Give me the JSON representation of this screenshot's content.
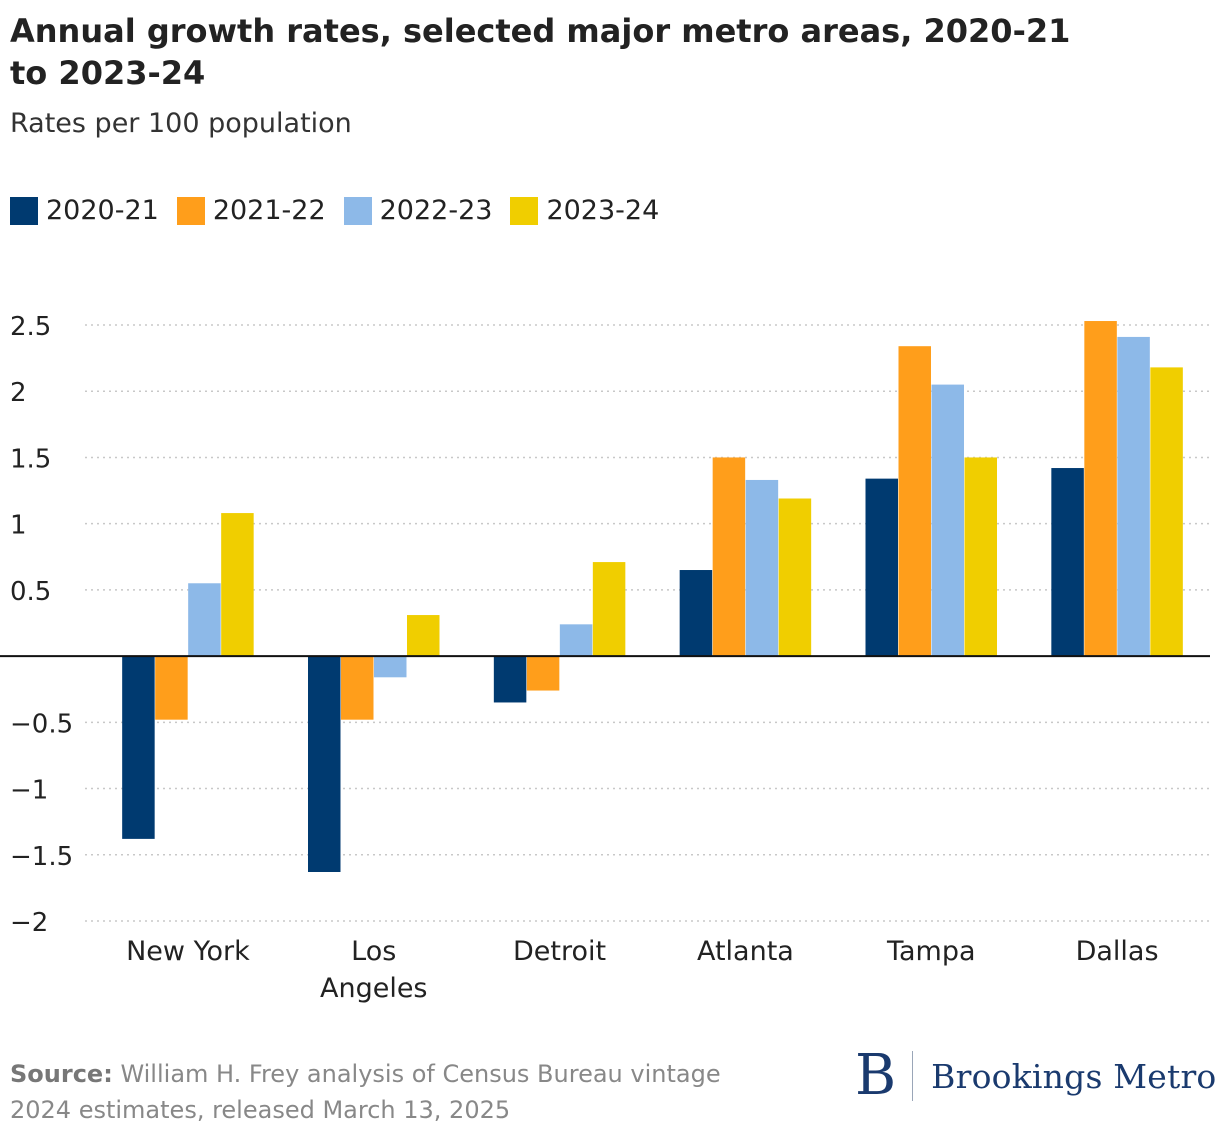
{
  "header": {
    "title": "Annual growth rates, selected major metro areas, 2020-21 to 2023-24",
    "subtitle": "Rates per 100 population"
  },
  "footer": {
    "source_label": "Source:",
    "source_text": "William H. Frey analysis of Census Bureau vintage 2024 estimates, released March 13, 2025",
    "logo_mark": "B",
    "logo_text": "Brookings Metro"
  },
  "chart_data": {
    "type": "bar",
    "title": "Annual growth rates, selected major metro areas, 2020-21 to 2023-24",
    "subtitle": "Rates per 100 population",
    "xlabel": "",
    "ylabel": "",
    "ylim": [
      -2,
      2.5
    ],
    "yticks": [
      "2.5",
      "2",
      "1.5",
      "1",
      "0.5",
      "−0.5",
      "−1",
      "−1.5",
      "−2"
    ],
    "ytick_values": [
      2.5,
      2,
      1.5,
      1,
      0.5,
      -0.5,
      -1,
      -1.5,
      -2
    ],
    "grid": "horizontal dotted",
    "legend_position": "top-left",
    "categories": [
      "New York",
      "Los Angeles",
      "Detroit",
      "Atlanta",
      "Tampa",
      "Dallas"
    ],
    "category_lines": [
      [
        "New York"
      ],
      [
        "Los",
        "Angeles"
      ],
      [
        "Detroit"
      ],
      [
        "Atlanta"
      ],
      [
        "Tampa"
      ],
      [
        "Dallas"
      ]
    ],
    "series": [
      {
        "name": "2020-21",
        "color": "#003a70",
        "values": [
          -1.38,
          -1.63,
          -0.35,
          0.65,
          1.34,
          1.42
        ]
      },
      {
        "name": "2021-22",
        "color": "#ff9e1b",
        "values": [
          -0.48,
          -0.48,
          -0.26,
          1.5,
          2.34,
          2.53
        ]
      },
      {
        "name": "2022-23",
        "color": "#8db9e8",
        "values": [
          0.55,
          -0.16,
          0.24,
          1.33,
          2.05,
          2.41
        ]
      },
      {
        "name": "2023-24",
        "color": "#f0ce00",
        "values": [
          1.08,
          0.31,
          0.71,
          1.19,
          1.5,
          2.18
        ]
      }
    ]
  }
}
